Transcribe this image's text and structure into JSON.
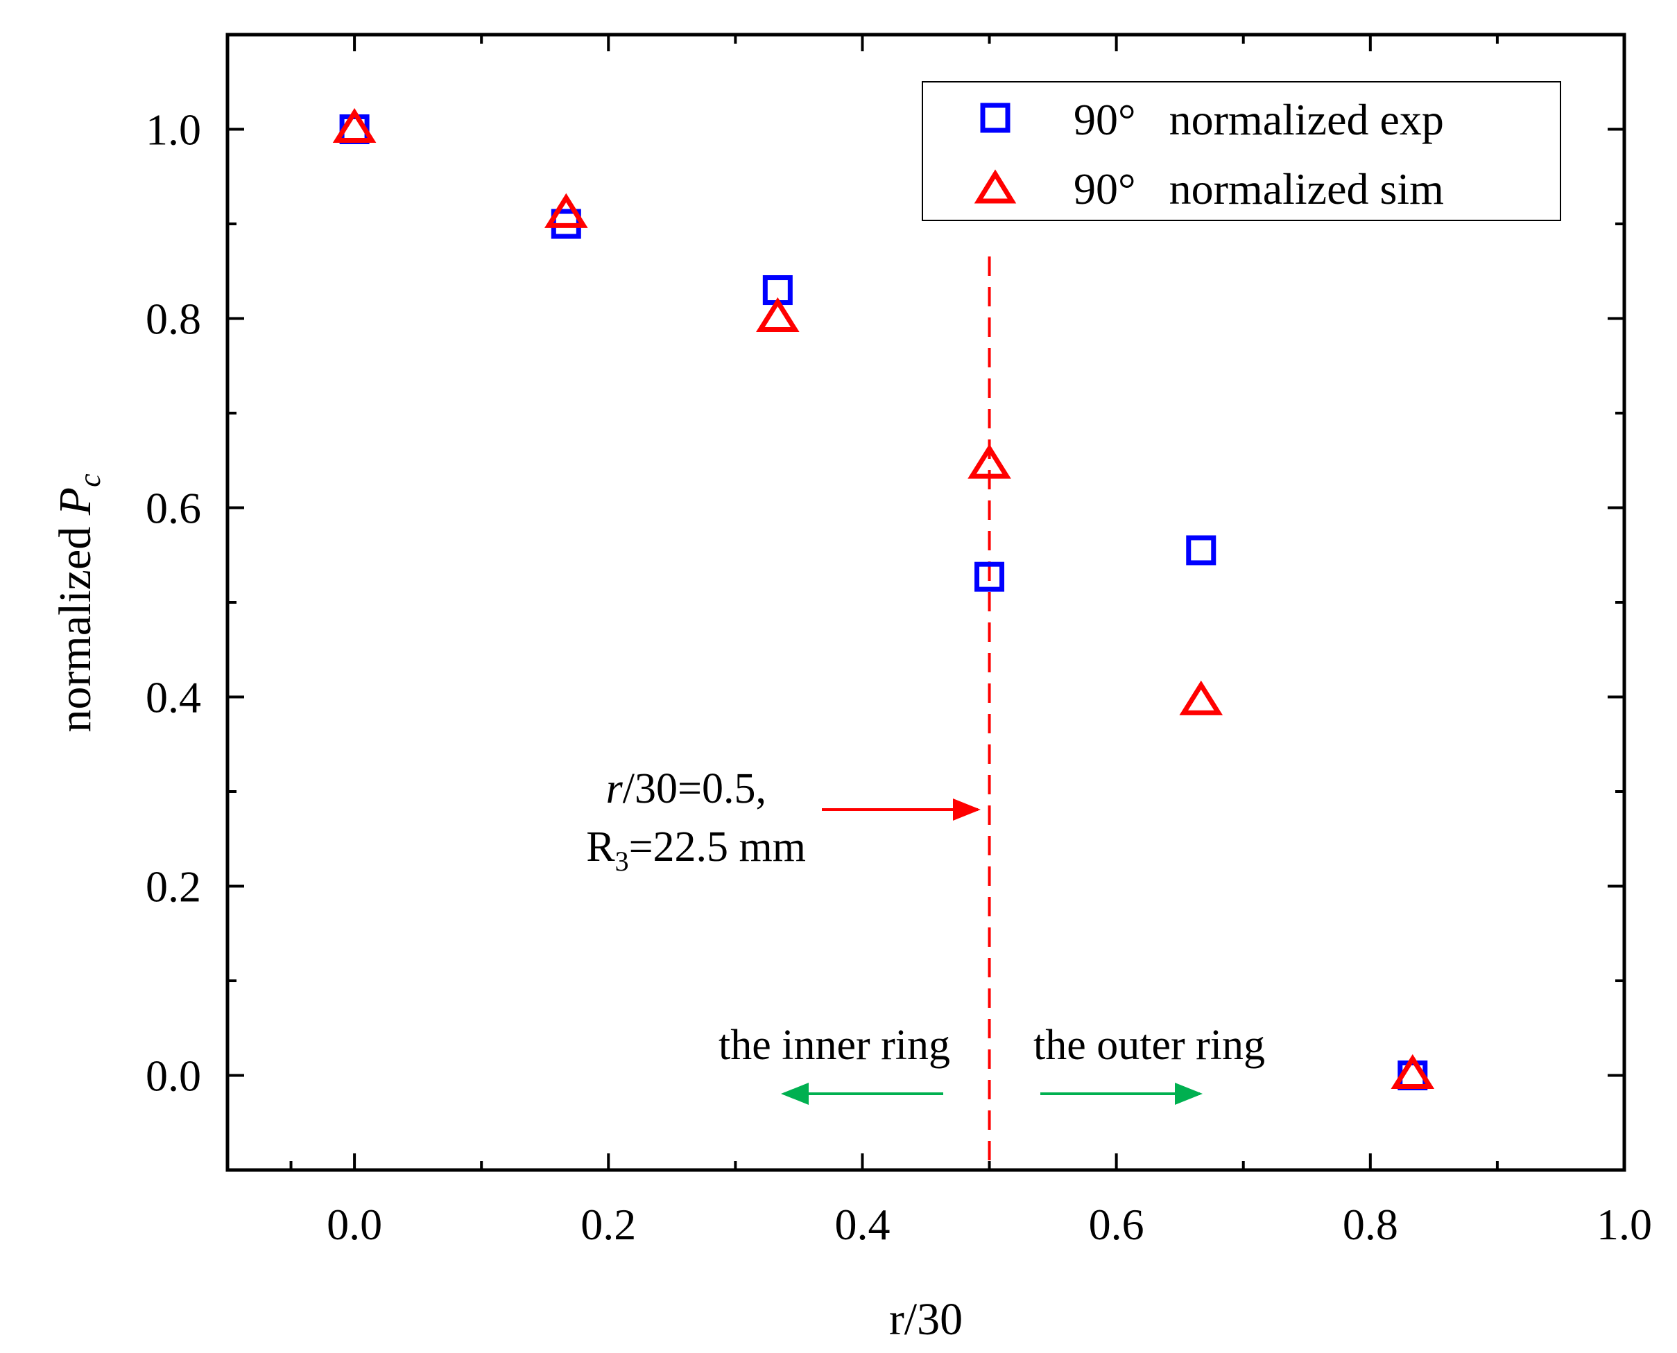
{
  "chart_data": {
    "type": "scatter",
    "xlabel": "r/30",
    "ylabel": {
      "prefix": "normalized ",
      "symbol": "P",
      "subscript": "c"
    },
    "xlim": [
      -0.1,
      1.0
    ],
    "ylim": [
      -0.1,
      1.1
    ],
    "xticks": [
      0.0,
      0.2,
      0.4,
      0.6,
      0.8,
      1.0
    ],
    "yticks": [
      0.0,
      0.2,
      0.4,
      0.6,
      0.8,
      1.0
    ],
    "legend": "top-right",
    "grid": false,
    "series": [
      {
        "name": "90°   normalized exp",
        "marker": "square",
        "color": "#0000ff",
        "x": [
          0.0,
          0.1667,
          0.3333,
          0.5,
          0.6667,
          0.8333
        ],
        "y": [
          1.0,
          0.9,
          0.83,
          0.527,
          0.555,
          0.0
        ]
      },
      {
        "name": "90°   normalized sim",
        "marker": "triangle",
        "color": "#ff0000",
        "x": [
          0.0,
          0.1667,
          0.3333,
          0.5,
          0.6667,
          0.8333
        ],
        "y": [
          1.0,
          0.91,
          0.8,
          0.645,
          0.395,
          0.0
        ]
      }
    ],
    "reference_line": {
      "x": 0.5,
      "color": "#ff0000",
      "style": "dashed"
    },
    "annotations": {
      "r_label_italic": "r",
      "r_label_rest": "/30=0.5,",
      "radius_label_main": "R",
      "radius_label_sub": "3",
      "radius_label_rest": "=22.5 mm",
      "inner_ring": "the inner ring",
      "outer_ring": "the outer ring",
      "arrow_color_red": "#ff0000",
      "arrow_color_green": "#00b050"
    }
  }
}
